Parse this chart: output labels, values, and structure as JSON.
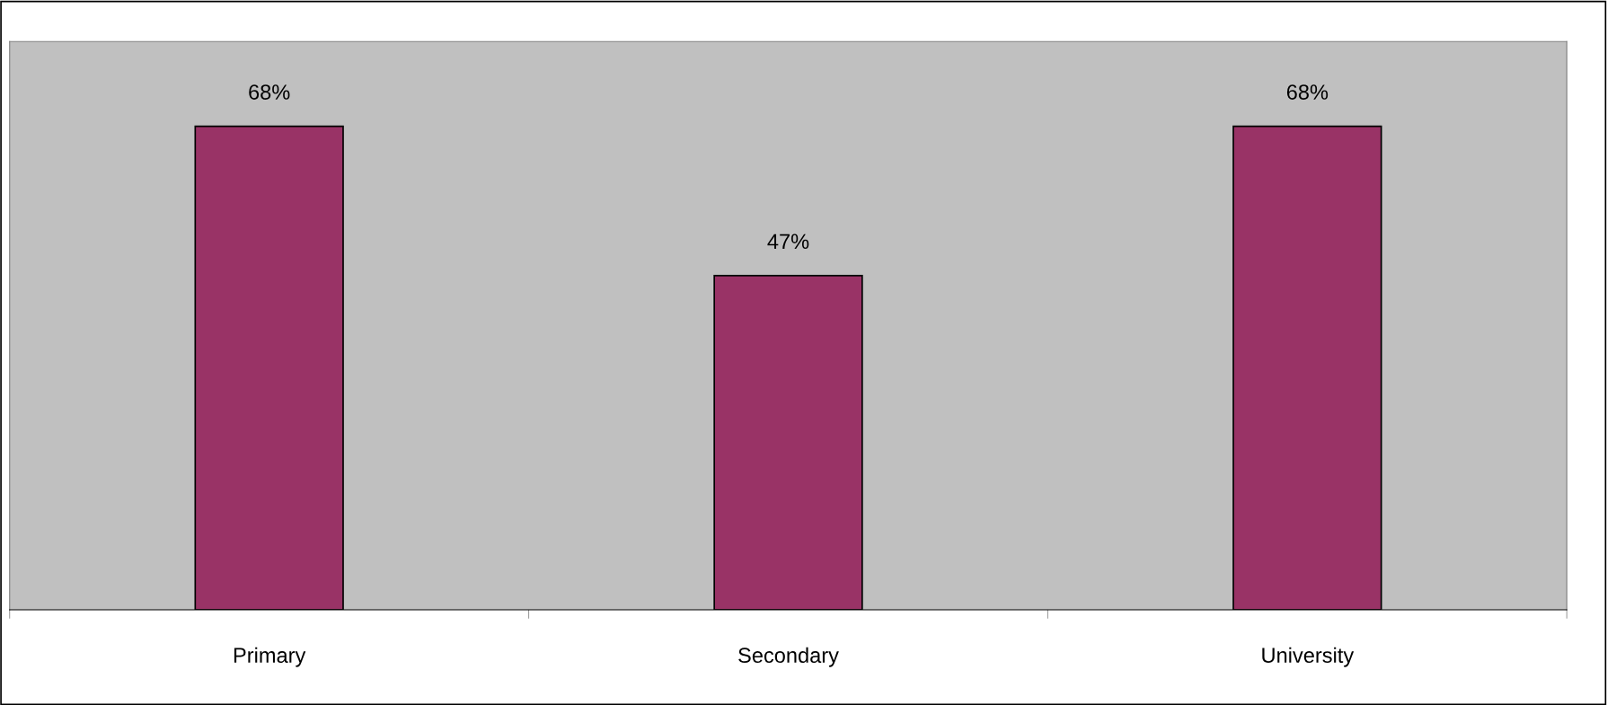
{
  "chart_data": {
    "type": "bar",
    "categories": [
      "Primary",
      "Secondary",
      "University"
    ],
    "values": [
      68,
      47,
      68
    ],
    "color": "#993366",
    "value_labels": [
      "68%",
      "47%",
      "68%"
    ],
    "grid": false,
    "legend": false
  }
}
